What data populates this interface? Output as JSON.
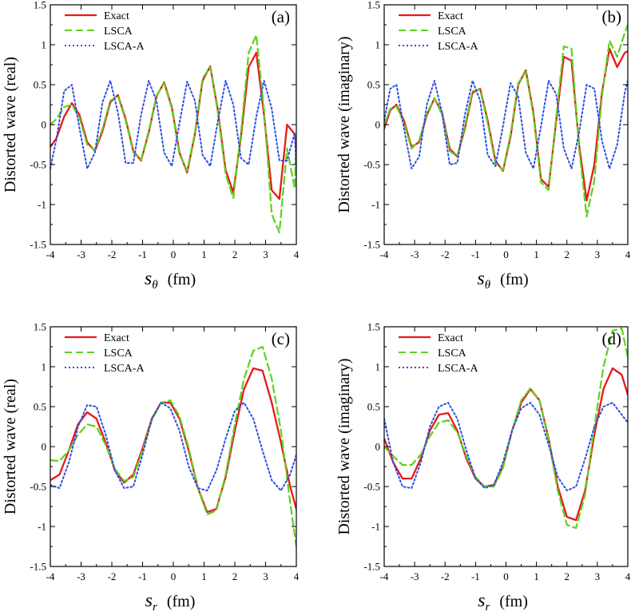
{
  "chart_data": [
    {
      "type": "line",
      "panel_label": "(a)",
      "xlabel_symbol": "s",
      "xlabel_subscript": "θ",
      "xlabel_unit": "(fm)",
      "ylabel": "Distorted  wave (real)",
      "xlim": [
        -4,
        4
      ],
      "ylim": [
        -1.5,
        1.5
      ],
      "x_ticks": [
        "-4",
        "-3",
        "-2",
        "-1",
        "0",
        "1",
        "2",
        "3",
        "4"
      ],
      "y_ticks": [
        "1.5",
        "1",
        "0.5",
        "0",
        "-0.5",
        "-1",
        "-1.5"
      ],
      "legend_position": "top-left",
      "series": [
        {
          "name": "Exact",
          "color": "#e8191a",
          "style": "solid",
          "x": [
            -4,
            -3.8,
            -3.55,
            -3.3,
            -3.05,
            -2.8,
            -2.55,
            -2.3,
            -2.05,
            -1.8,
            -1.55,
            -1.3,
            -1.05,
            -0.8,
            -0.55,
            -0.3,
            -0.05,
            0.2,
            0.45,
            0.7,
            0.95,
            1.2,
            1.45,
            1.7,
            1.95,
            2.2,
            2.45,
            2.7,
            2.95,
            3.2,
            3.45,
            3.7,
            3.95,
            4.0
          ],
          "y": [
            -0.28,
            -0.17,
            0.1,
            0.27,
            0.12,
            -0.22,
            -0.33,
            -0.08,
            0.28,
            0.37,
            0.07,
            -0.33,
            -0.45,
            -0.1,
            0.35,
            0.53,
            0.22,
            -0.35,
            -0.6,
            -0.12,
            0.55,
            0.73,
            0.18,
            -0.57,
            -0.85,
            -0.15,
            0.72,
            0.9,
            0.12,
            -0.82,
            -0.93,
            0.0,
            -0.12,
            -0.32
          ]
        },
        {
          "name": "LSCA",
          "color": "#5cd21e",
          "style": "dashed",
          "x": [
            -4,
            -3.8,
            -3.55,
            -3.3,
            -3.05,
            -2.8,
            -2.55,
            -2.3,
            -2.05,
            -1.8,
            -1.55,
            -1.3,
            -1.05,
            -0.8,
            -0.55,
            -0.3,
            -0.05,
            0.2,
            0.45,
            0.7,
            0.95,
            1.2,
            1.45,
            1.7,
            1.95,
            2.2,
            2.45,
            2.7,
            2.95,
            3.2,
            3.45,
            3.7,
            3.95,
            4.0
          ],
          "y": [
            0.0,
            0.07,
            0.22,
            0.25,
            0.08,
            -0.25,
            -0.32,
            -0.05,
            0.3,
            0.36,
            0.05,
            -0.35,
            -0.44,
            -0.08,
            0.36,
            0.52,
            0.2,
            -0.37,
            -0.58,
            -0.1,
            0.58,
            0.72,
            0.15,
            -0.62,
            -0.92,
            -0.1,
            0.9,
            1.12,
            0.18,
            -1.12,
            -1.35,
            -0.3,
            -0.8,
            -0.1
          ]
        },
        {
          "name": "LSCA-A",
          "color": "#2e4fe0",
          "style": "dotted",
          "x": [
            -4,
            -3.8,
            -3.55,
            -3.3,
            -3.05,
            -2.8,
            -2.55,
            -2.3,
            -2.05,
            -1.8,
            -1.55,
            -1.3,
            -1.05,
            -0.8,
            -0.55,
            -0.3,
            -0.05,
            0.2,
            0.45,
            0.7,
            0.95,
            1.2,
            1.45,
            1.7,
            1.95,
            2.2,
            2.45,
            2.7,
            2.95,
            3.2,
            3.45,
            3.7,
            3.95,
            4.0
          ],
          "y": [
            -0.55,
            -0.18,
            0.42,
            0.5,
            -0.05,
            -0.55,
            -0.35,
            0.28,
            0.55,
            0.15,
            -0.48,
            -0.48,
            0.12,
            0.55,
            0.3,
            -0.35,
            -0.52,
            0.02,
            0.54,
            0.3,
            -0.38,
            -0.52,
            0.05,
            0.55,
            0.25,
            -0.42,
            -0.5,
            0.1,
            0.55,
            0.2,
            -0.45,
            -0.45,
            -0.1,
            -0.55
          ]
        }
      ]
    },
    {
      "type": "line",
      "panel_label": "(b)",
      "xlabel_symbol": "s",
      "xlabel_subscript": "θ",
      "xlabel_unit": "(fm)",
      "ylabel": "Distorted  wave (imaginary)",
      "xlim": [
        -4,
        4
      ],
      "ylim": [
        -1.5,
        1.5
      ],
      "x_ticks": [
        "-4",
        "-3",
        "-2",
        "-1",
        "0",
        "1",
        "2",
        "3",
        "4"
      ],
      "y_ticks": [
        "1.5",
        "1",
        "0.5",
        "0",
        "-0.5",
        "-1",
        "-1.5"
      ],
      "legend_position": "top-left",
      "series": [
        {
          "name": "Exact",
          "color": "#e8191a",
          "style": "solid",
          "x": [
            -4,
            -3.8,
            -3.6,
            -3.35,
            -3.1,
            -2.85,
            -2.6,
            -2.35,
            -2.1,
            -1.85,
            -1.6,
            -1.35,
            -1.1,
            -0.85,
            -0.6,
            -0.35,
            -0.1,
            0.15,
            0.4,
            0.65,
            0.9,
            1.15,
            1.4,
            1.65,
            1.9,
            2.15,
            2.4,
            2.65,
            2.9,
            3.15,
            3.4,
            3.65,
            3.9,
            4.0
          ],
          "y": [
            -0.05,
            0.18,
            0.25,
            0.05,
            -0.28,
            -0.22,
            0.12,
            0.33,
            0.15,
            -0.3,
            -0.4,
            -0.05,
            0.4,
            0.45,
            0.05,
            -0.45,
            -0.58,
            -0.15,
            0.5,
            0.68,
            0.15,
            -0.68,
            -0.78,
            0.05,
            0.85,
            0.8,
            -0.25,
            -0.95,
            -0.5,
            0.4,
            0.95,
            0.72,
            0.9,
            0.92
          ]
        },
        {
          "name": "LSCA",
          "color": "#5cd21e",
          "style": "dashed",
          "x": [
            -4,
            -3.8,
            -3.6,
            -3.35,
            -3.1,
            -2.85,
            -2.6,
            -2.35,
            -2.1,
            -1.85,
            -1.6,
            -1.35,
            -1.1,
            -0.85,
            -0.6,
            -0.35,
            -0.1,
            0.15,
            0.4,
            0.65,
            0.9,
            1.15,
            1.4,
            1.65,
            1.9,
            2.15,
            2.4,
            2.65,
            2.9,
            3.15,
            3.4,
            3.65,
            3.9,
            4.0
          ],
          "y": [
            0.0,
            0.2,
            0.23,
            0.02,
            -0.3,
            -0.2,
            0.14,
            0.33,
            0.13,
            -0.33,
            -0.4,
            -0.02,
            0.42,
            0.44,
            0.02,
            -0.48,
            -0.57,
            -0.12,
            0.52,
            0.66,
            0.12,
            -0.72,
            -0.82,
            0.1,
            0.98,
            0.95,
            -0.3,
            -1.15,
            -0.7,
            0.35,
            1.05,
            0.85,
            1.15,
            1.25
          ]
        },
        {
          "name": "LSCA-A",
          "color": "#2e4fe0",
          "style": "dotted",
          "x": [
            -4,
            -3.8,
            -3.6,
            -3.35,
            -3.1,
            -2.85,
            -2.6,
            -2.35,
            -2.1,
            -1.85,
            -1.6,
            -1.35,
            -1.1,
            -0.85,
            -0.6,
            -0.35,
            -0.1,
            0.15,
            0.4,
            0.65,
            0.9,
            1.15,
            1.4,
            1.65,
            1.9,
            2.15,
            2.4,
            2.65,
            2.9,
            3.15,
            3.4,
            3.65,
            3.9,
            4.0
          ],
          "y": [
            0.05,
            0.45,
            0.5,
            -0.05,
            -0.55,
            -0.4,
            0.25,
            0.55,
            0.15,
            -0.5,
            -0.48,
            0.12,
            0.55,
            0.3,
            -0.38,
            -0.52,
            -0.02,
            0.52,
            0.35,
            -0.35,
            -0.55,
            -0.02,
            0.55,
            0.38,
            -0.3,
            -0.55,
            -0.1,
            0.5,
            0.45,
            -0.2,
            -0.55,
            -0.25,
            0.4,
            0.55
          ]
        }
      ]
    },
    {
      "type": "line",
      "panel_label": "(c)",
      "xlabel_symbol": "s",
      "xlabel_subscript": "r",
      "xlabel_unit": "(fm)",
      "ylabel": "Distorted  wave (real)",
      "xlim": [
        -4,
        4
      ],
      "ylim": [
        -1.5,
        1.5
      ],
      "x_ticks": [
        "-4",
        "-3",
        "-2",
        "-1",
        "0",
        "1",
        "2",
        "3",
        "4"
      ],
      "y_ticks": [
        "1.5",
        "1",
        "0.5",
        "0",
        "-0.5",
        "-1",
        "-1.5"
      ],
      "legend_position": "top-left",
      "series": [
        {
          "name": "Exact",
          "color": "#e8191a",
          "style": "solid",
          "x": [
            -4,
            -3.7,
            -3.4,
            -3.1,
            -2.8,
            -2.5,
            -2.2,
            -1.9,
            -1.6,
            -1.3,
            -1.0,
            -0.7,
            -0.4,
            -0.1,
            0.2,
            0.5,
            0.8,
            1.1,
            1.4,
            1.7,
            2.0,
            2.3,
            2.6,
            2.9,
            3.2,
            3.5,
            3.8,
            4.0
          ],
          "y": [
            -0.42,
            -0.35,
            -0.05,
            0.28,
            0.43,
            0.35,
            0.05,
            -0.3,
            -0.45,
            -0.35,
            -0.02,
            0.35,
            0.55,
            0.55,
            0.35,
            -0.05,
            -0.52,
            -0.82,
            -0.78,
            -0.38,
            0.2,
            0.72,
            0.98,
            0.95,
            0.55,
            0.05,
            -0.5,
            -0.78
          ]
        },
        {
          "name": "LSCA",
          "color": "#5cd21e",
          "style": "dashed",
          "x": [
            -4,
            -3.7,
            -3.4,
            -3.1,
            -2.8,
            -2.5,
            -2.2,
            -1.9,
            -1.6,
            -1.3,
            -1.0,
            -0.7,
            -0.4,
            -0.1,
            0.2,
            0.5,
            0.8,
            1.1,
            1.4,
            1.7,
            2.0,
            2.3,
            2.6,
            2.9,
            3.2,
            3.5,
            3.8,
            4.0
          ],
          "y": [
            -0.17,
            -0.18,
            -0.05,
            0.15,
            0.28,
            0.25,
            0.02,
            -0.28,
            -0.43,
            -0.38,
            -0.05,
            0.33,
            0.55,
            0.58,
            0.38,
            -0.02,
            -0.52,
            -0.85,
            -0.8,
            -0.35,
            0.28,
            0.85,
            1.2,
            1.25,
            0.85,
            0.2,
            -0.7,
            -1.25
          ]
        },
        {
          "name": "LSCA-A",
          "color": "#2e4fe0",
          "style": "dotted",
          "x": [
            -4,
            -3.7,
            -3.4,
            -3.1,
            -2.8,
            -2.5,
            -2.2,
            -1.9,
            -1.6,
            -1.3,
            -1.0,
            -0.7,
            -0.4,
            -0.1,
            0.2,
            0.5,
            0.8,
            1.1,
            1.4,
            1.7,
            2.0,
            2.3,
            2.6,
            2.9,
            3.2,
            3.5,
            3.8,
            4.0
          ],
          "y": [
            -0.48,
            -0.52,
            -0.2,
            0.25,
            0.52,
            0.5,
            0.15,
            -0.3,
            -0.52,
            -0.5,
            -0.1,
            0.35,
            0.55,
            0.48,
            0.2,
            -0.25,
            -0.52,
            -0.55,
            -0.3,
            0.1,
            0.45,
            0.55,
            0.35,
            -0.05,
            -0.42,
            -0.55,
            -0.35,
            -0.1
          ]
        }
      ]
    },
    {
      "type": "line",
      "panel_label": "(d)",
      "xlabel_symbol": "s",
      "xlabel_subscript": "r",
      "xlabel_unit": "(fm)",
      "ylabel": "Distorted  wave (imaginary)",
      "xlim": [
        -4,
        4
      ],
      "ylim": [
        -1.5,
        1.5
      ],
      "x_ticks": [
        "-4",
        "-3",
        "-2",
        "-1",
        "0",
        "1",
        "2",
        "3",
        "4"
      ],
      "y_ticks": [
        "1.5",
        "1",
        "0.5",
        "0",
        "-0.5",
        "-1",
        "-1.5"
      ],
      "legend_position": "top-left",
      "series": [
        {
          "name": "Exact",
          "color": "#e8191a",
          "style": "solid",
          "x": [
            -4,
            -3.7,
            -3.4,
            -3.1,
            -2.8,
            -2.5,
            -2.2,
            -1.9,
            -1.6,
            -1.3,
            -1.0,
            -0.7,
            -0.4,
            -0.1,
            0.2,
            0.5,
            0.8,
            1.1,
            1.4,
            1.7,
            2.0,
            2.3,
            2.6,
            2.9,
            3.2,
            3.5,
            3.8,
            4.0
          ],
          "y": [
            0.1,
            -0.2,
            -0.4,
            -0.4,
            -0.15,
            0.2,
            0.4,
            0.42,
            0.2,
            -0.15,
            -0.4,
            -0.5,
            -0.48,
            -0.25,
            0.2,
            0.55,
            0.72,
            0.58,
            0.1,
            -0.5,
            -0.88,
            -0.92,
            -0.55,
            0.15,
            0.72,
            0.98,
            0.9,
            0.65
          ]
        },
        {
          "name": "LSCA",
          "color": "#5cd21e",
          "style": "dashed",
          "x": [
            -4,
            -3.7,
            -3.4,
            -3.1,
            -2.8,
            -2.5,
            -2.2,
            -1.9,
            -1.6,
            -1.3,
            -1.0,
            -0.7,
            -0.4,
            -0.1,
            0.2,
            0.5,
            0.8,
            1.1,
            1.4,
            1.7,
            2.0,
            2.3,
            2.6,
            2.9,
            3.2,
            3.5,
            3.8,
            4.0
          ],
          "y": [
            0.0,
            -0.12,
            -0.23,
            -0.23,
            -0.1,
            0.13,
            0.3,
            0.33,
            0.18,
            -0.12,
            -0.38,
            -0.5,
            -0.5,
            -0.27,
            0.2,
            0.58,
            0.73,
            0.58,
            0.08,
            -0.55,
            -0.98,
            -1.02,
            -0.6,
            0.25,
            1.0,
            1.45,
            1.48,
            1.12
          ]
        },
        {
          "name": "LSCA-A",
          "color": "#2e4fe0",
          "style": "dotted",
          "x": [
            -4,
            -3.7,
            -3.4,
            -3.1,
            -2.8,
            -2.5,
            -2.2,
            -1.9,
            -1.6,
            -1.3,
            -1.0,
            -0.7,
            -0.4,
            -0.1,
            0.2,
            0.5,
            0.8,
            1.1,
            1.4,
            1.7,
            2.0,
            2.3,
            2.6,
            2.9,
            3.2,
            3.5,
            3.8,
            4.0
          ],
          "y": [
            0.35,
            -0.2,
            -0.5,
            -0.52,
            -0.2,
            0.25,
            0.5,
            0.55,
            0.35,
            -0.05,
            -0.4,
            -0.52,
            -0.48,
            -0.2,
            0.2,
            0.48,
            0.55,
            0.4,
            0.02,
            -0.38,
            -0.55,
            -0.5,
            -0.15,
            0.25,
            0.5,
            0.55,
            0.4,
            0.3
          ]
        }
      ]
    }
  ]
}
